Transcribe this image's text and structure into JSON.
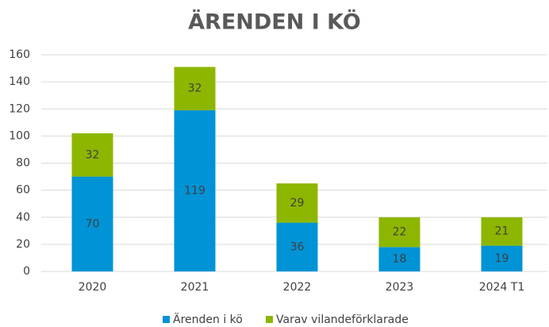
{
  "chart_data": {
    "type": "stacked_bar",
    "title": "ÄRENDEN I KÖ",
    "categories": [
      "2020",
      "2021",
      "2022",
      "2023",
      "2024 T1"
    ],
    "series": [
      {
        "name": "Ärenden i kö",
        "color": "#0093d6",
        "values": [
          70,
          119,
          36,
          18,
          19
        ]
      },
      {
        "name": "Varav vilandeförklarade",
        "color": "#8db600",
        "values": [
          32,
          32,
          29,
          22,
          21
        ]
      }
    ],
    "ylim": [
      0,
      160
    ],
    "yticks": [
      0,
      20,
      40,
      60,
      80,
      100,
      120,
      140,
      160
    ],
    "grid": true,
    "legend": "bottom"
  }
}
